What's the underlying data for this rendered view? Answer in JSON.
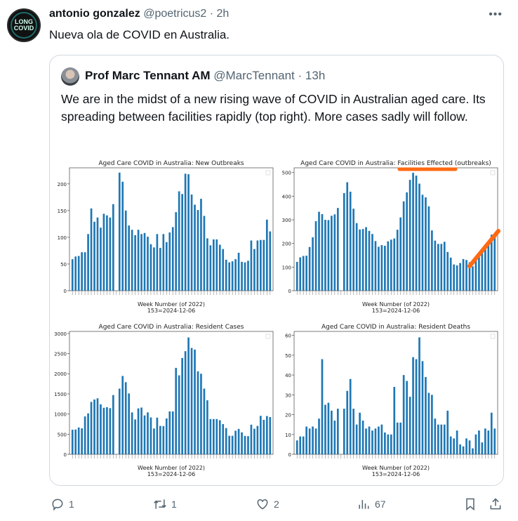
{
  "tweet": {
    "author_name": "antonio gonzalez",
    "author_handle": "@poetricus2",
    "time": "2h",
    "avatar_text": [
      "LONG",
      "COVID"
    ],
    "text": "Nueva ola de COVID en Australia.",
    "more_icon": "more-horizontal-icon"
  },
  "quote": {
    "author_name": "Prof Marc Tennant AM",
    "author_handle": "@MarcTennant",
    "time": "13h",
    "text": "We are in the midst of a new rising wave of COVID in Australian aged care. Its spreading between facilities rapidly (top right).  More cases sadly will follow."
  },
  "annotation_color": "#ff6a13",
  "bar_color": "#1f77b4",
  "chart_data": [
    {
      "type": "bar",
      "title": "Aged Care COVID in Australia: New Outbreaks",
      "xlabel": "Week Number (of 2022)",
      "xlabel2": "153=2024-12-06",
      "ylim": [
        0,
        230
      ],
      "yticks": [
        0,
        50,
        100,
        150,
        200
      ],
      "values": [
        59,
        64,
        65,
        72,
        72,
        106,
        154,
        129,
        137,
        118,
        144,
        141,
        137,
        162,
        null,
        221,
        204,
        150,
        122,
        114,
        104,
        114,
        106,
        108,
        101,
        87,
        81,
        106,
        80,
        106,
        91,
        109,
        119,
        147,
        186,
        181,
        219,
        218,
        180,
        161,
        151,
        172,
        140,
        98,
        85,
        96,
        96,
        86,
        78,
        58,
        53,
        55,
        59,
        71,
        54,
        53,
        56,
        94,
        78,
        94,
        95,
        95,
        133,
        111
      ]
    },
    {
      "type": "bar",
      "title": "Aged Care COVID in Australia: Facilities Effected (outbreaks)",
      "xlabel": "Week Number (of 2022)",
      "xlabel2": "153=2024-12-06",
      "ylim": [
        0,
        520
      ],
      "yticks": [
        0,
        100,
        200,
        300,
        400,
        500
      ],
      "values": [
        122,
        141,
        147,
        148,
        185,
        226,
        294,
        334,
        324,
        300,
        299,
        317,
        323,
        350,
        null,
        413,
        459,
        419,
        347,
        286,
        259,
        261,
        269,
        253,
        240,
        210,
        186,
        193,
        190,
        209,
        216,
        221,
        258,
        310,
        378,
        416,
        469,
        499,
        487,
        453,
        406,
        395,
        357,
        255,
        212,
        198,
        198,
        207,
        164,
        140,
        111,
        107,
        117,
        134,
        130,
        120,
        103,
        141,
        156,
        178,
        195,
        203,
        237,
        231
      ],
      "annotations": [
        "underline under 'Facilities Effected'",
        "rising diagonal line over last weeks"
      ]
    },
    {
      "type": "bar",
      "title": "Aged Care COVID in Australia: Resident Cases",
      "xlabel": "Week Number (of 2022)",
      "xlabel2": "153=2024-12-06",
      "ylim": [
        0,
        3050
      ],
      "yticks": [
        0,
        500,
        1000,
        1500,
        2000,
        2500,
        3000
      ],
      "values": [
        610,
        615,
        665,
        645,
        940,
        1015,
        1300,
        1360,
        1390,
        1240,
        1155,
        1170,
        1145,
        1470,
        null,
        1630,
        1945,
        1790,
        1510,
        1040,
        865,
        1140,
        1160,
        965,
        1040,
        915,
        640,
        910,
        705,
        700,
        890,
        1065,
        1065,
        2145,
        1960,
        2390,
        2560,
        2900,
        2640,
        2600,
        2060,
        2000,
        1630,
        1340,
        875,
        875,
        875,
        845,
        750,
        650,
        460,
        460,
        585,
        630,
        545,
        455,
        450,
        735,
        635,
        705,
        955,
        855,
        950,
        925
      ]
    },
    {
      "type": "bar",
      "title": "Aged Care COVID in Australia: Resident Deaths",
      "xlabel": "Week Number (of 2022)",
      "xlabel2": "153=2024-12-06",
      "ylim": [
        0,
        62
      ],
      "yticks": [
        0,
        10,
        20,
        30,
        40,
        50,
        60
      ],
      "values": [
        7,
        9,
        9,
        14,
        13,
        14,
        13,
        18,
        48,
        25,
        26,
        22,
        17,
        23,
        null,
        23,
        32,
        38,
        23,
        15,
        21,
        17,
        13,
        14,
        12,
        13,
        14,
        15,
        11,
        10,
        10,
        34,
        16,
        16,
        40,
        37,
        29,
        49,
        48,
        59,
        47,
        39,
        31,
        30,
        18,
        15,
        15,
        15,
        22,
        9,
        8,
        12,
        5,
        4,
        8,
        7,
        3,
        10,
        12,
        6,
        13,
        12,
        21,
        13
      ]
    }
  ],
  "actions": {
    "reply": {
      "icon": "reply-icon",
      "count": "1"
    },
    "retweet": {
      "icon": "retweet-icon",
      "count": "1"
    },
    "like": {
      "icon": "heart-icon",
      "count": "2"
    },
    "views": {
      "icon": "views-icon",
      "count": "67"
    },
    "bookmark": {
      "icon": "bookmark-icon"
    },
    "share": {
      "icon": "share-icon"
    }
  }
}
